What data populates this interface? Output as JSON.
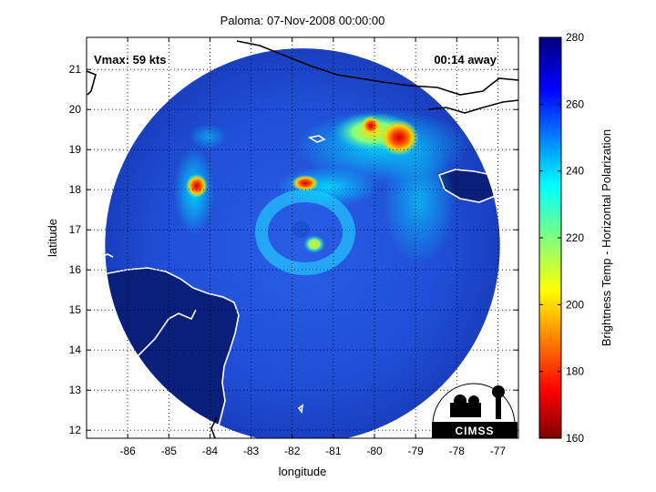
{
  "title": "Paloma: 07-Nov-2008 00:00:00",
  "annotations": {
    "vmax": "Vmax: 59 kts",
    "eta": "00:14 away"
  },
  "axes": {
    "xlabel": "longitude",
    "ylabel": "latitude",
    "xlim": [
      -87,
      -76.5
    ],
    "ylim": [
      11.8,
      21.8
    ],
    "xticks": [
      -86,
      -85,
      -84,
      -83,
      -82,
      -81,
      -80,
      -79,
      -78,
      -77
    ],
    "yticks": [
      12,
      13,
      14,
      15,
      16,
      17,
      18,
      19,
      20,
      21
    ],
    "grid": "dotted"
  },
  "colorbar": {
    "label": "Brightness Temp - Horizontal Polarization",
    "range": [
      160,
      280
    ],
    "ticks": [
      160,
      180,
      200,
      220,
      240,
      260,
      280
    ],
    "colormap": "jet-reversed"
  },
  "swath": {
    "center_lon": -81.75,
    "center_lat": 16.6,
    "radius_deg": 4.8
  },
  "features": [
    {
      "name": "eye-center",
      "lon": -81.6,
      "lat": 17.0,
      "tb": 215
    },
    {
      "name": "cold-core-northeast",
      "lon": -79.3,
      "lat": 19.3,
      "tb": 170
    },
    {
      "name": "band-west",
      "lon": -84.2,
      "lat": 18.1,
      "tb": 185
    },
    {
      "name": "band-north",
      "lon": -81.8,
      "lat": 18.2,
      "tb": 185
    },
    {
      "name": "band-north-east",
      "lon": -80.0,
      "lat": 19.4,
      "tb": 200
    }
  ],
  "logo": {
    "text": "CIMSS"
  },
  "colors": {
    "ocean": "#1c3fb5",
    "land": "#00007f",
    "coast": "#ffffff",
    "background": "#ffffff"
  }
}
